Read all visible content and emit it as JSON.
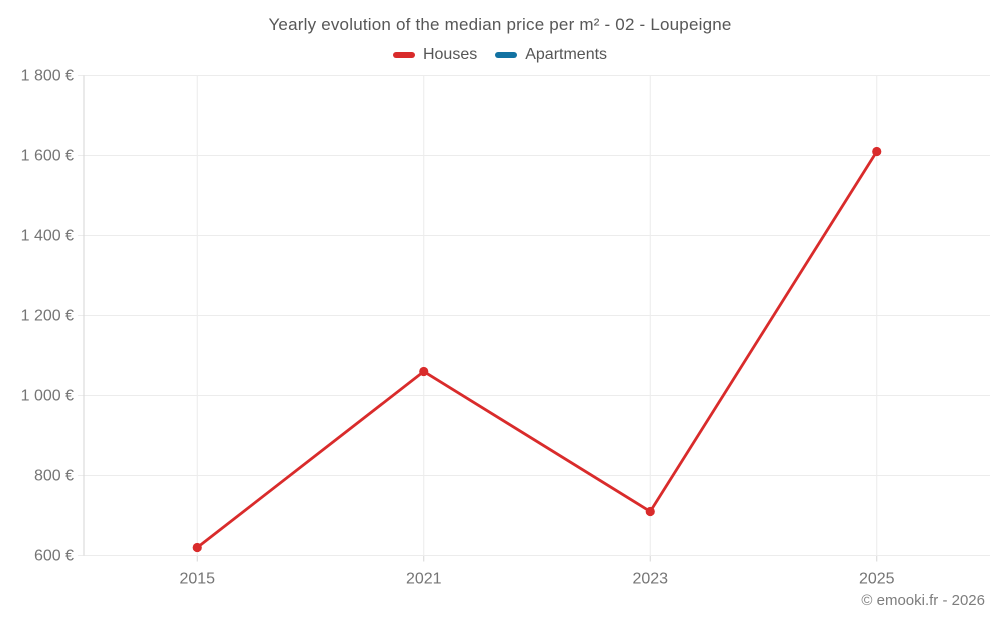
{
  "title": "Yearly evolution of the median price per m² - 02 - Loupeigne",
  "legend": [
    {
      "label": "Houses",
      "color": "#d92b2b"
    },
    {
      "label": "Apartments",
      "color": "#1272a2"
    }
  ],
  "footer": {
    "copyright": "© emooki.fr - 2026"
  },
  "colors": {
    "background": "#ffffff",
    "grid": "#ececec",
    "axis": "#d6d6d6",
    "tick_text": "#757575",
    "title_text": "#575757"
  },
  "chart_data": {
    "type": "line",
    "title": "Yearly evolution of the median price per m² - 02 - Loupeigne",
    "categories": [
      "2015",
      "2021",
      "2023",
      "2025"
    ],
    "series": [
      {
        "name": "Houses",
        "color": "#d92b2b",
        "values": [
          620,
          1060,
          710,
          1610
        ]
      },
      {
        "name": "Apartments",
        "color": "#1272a2",
        "values": []
      }
    ],
    "xlabel": "",
    "ylabel": "",
    "ylim": [
      600,
      1800
    ],
    "ytick_step": 200,
    "ytick_labels": [
      "600 €",
      "800 €",
      "1 000 €",
      "1 200 €",
      "1 400 €",
      "1 600 €",
      "1 800 €"
    ],
    "grid": true,
    "legend_position": "top",
    "marker": "circle"
  }
}
